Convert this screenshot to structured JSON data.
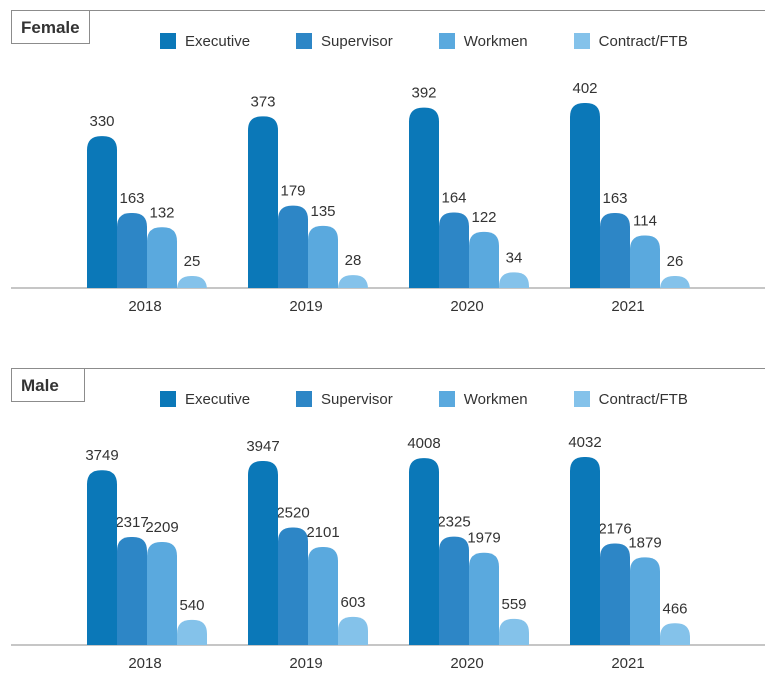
{
  "colors": {
    "Executive": "#0b78b8",
    "Supervisor": "#2d86c6",
    "Workmen": "#5aa9de",
    "Contract/FTB": "#84c2ea"
  },
  "chart_data": [
    {
      "type": "bar",
      "title": "Female",
      "categories": [
        "2018",
        "2019",
        "2020",
        "2021"
      ],
      "series": [
        {
          "name": "Executive",
          "values": [
            330,
            373,
            392,
            402
          ]
        },
        {
          "name": "Supervisor",
          "values": [
            163,
            179,
            164,
            163
          ]
        },
        {
          "name": "Workmen",
          "values": [
            132,
            135,
            122,
            114
          ]
        },
        {
          "name": "Contract/FTB",
          "values": [
            25,
            28,
            34,
            26
          ]
        }
      ],
      "legend": "top"
    },
    {
      "type": "bar",
      "title": "Male",
      "categories": [
        "2018",
        "2019",
        "2020",
        "2021"
      ],
      "series": [
        {
          "name": "Executive",
          "values": [
            3749,
            3947,
            4008,
            4032
          ]
        },
        {
          "name": "Supervisor",
          "values": [
            2317,
            2520,
            2325,
            2176
          ]
        },
        {
          "name": "Workmen",
          "values": [
            2209,
            2101,
            1979,
            1879
          ]
        },
        {
          "name": "Contract/FTB",
          "values": [
            540,
            603,
            559,
            466
          ]
        }
      ],
      "legend": "top"
    }
  ]
}
